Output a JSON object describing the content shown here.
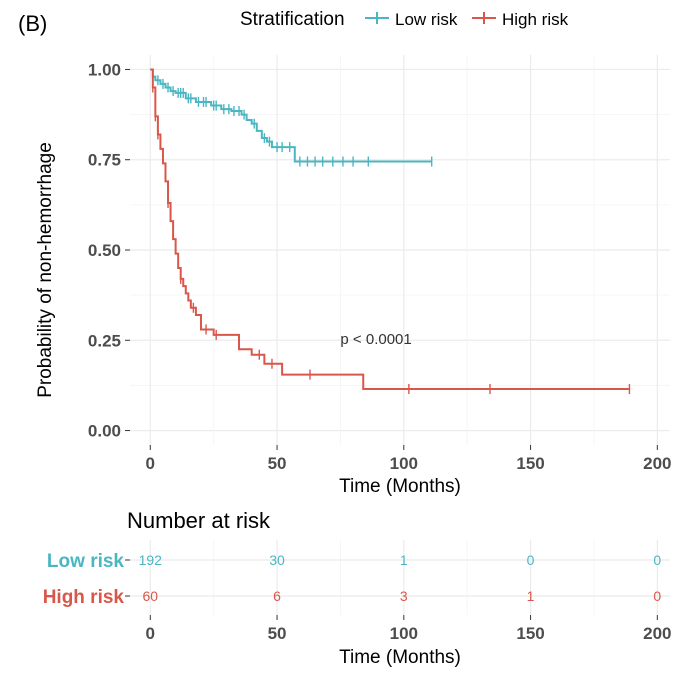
{
  "panel_label": "(B)",
  "colors": {
    "low": "#4bb6c3",
    "high": "#d9574a",
    "grid": "#ebebeb",
    "axis_text": "#4d4d4d"
  },
  "chart_data": {
    "type": "line",
    "subtype": "kaplan-meier",
    "title": "",
    "xlabel": "Time (Months)",
    "ylabel": "Probability of non-hemorrhage",
    "xlim": [
      -8,
      205
    ],
    "ylim": [
      -0.04,
      1.04
    ],
    "x_ticks": [
      0,
      50,
      100,
      150,
      200
    ],
    "y_ticks": [
      0.0,
      0.25,
      0.5,
      0.75,
      1.0
    ],
    "x_tick_labels": [
      "0",
      "50",
      "100",
      "150",
      "200"
    ],
    "y_tick_labels": [
      "0.00",
      "0.25",
      "0.50",
      "0.75",
      "1.00"
    ],
    "grid": true,
    "legend": {
      "title": "Stratification",
      "position": "top",
      "entries": [
        "Low risk",
        "High risk"
      ]
    },
    "annotation": "p < 0.0001",
    "annotation_at": [
      75,
      0.24
    ],
    "series": [
      {
        "name": "Low risk",
        "color_key": "low",
        "steps": [
          [
            0,
            1.0
          ],
          [
            1,
            0.98
          ],
          [
            2,
            0.97
          ],
          [
            4,
            0.96
          ],
          [
            6,
            0.95
          ],
          [
            8,
            0.94
          ],
          [
            10,
            0.935
          ],
          [
            14,
            0.92
          ],
          [
            18,
            0.91
          ],
          [
            24,
            0.9
          ],
          [
            28,
            0.89
          ],
          [
            32,
            0.885
          ],
          [
            36,
            0.875
          ],
          [
            38,
            0.86
          ],
          [
            40,
            0.85
          ],
          [
            42,
            0.83
          ],
          [
            44,
            0.81
          ],
          [
            46,
            0.8
          ],
          [
            48,
            0.785
          ],
          [
            57,
            0.745
          ],
          [
            111,
            0.745
          ]
        ],
        "censors": [
          [
            3,
            0.97
          ],
          [
            5,
            0.96
          ],
          [
            7,
            0.95
          ],
          [
            9,
            0.94
          ],
          [
            11,
            0.935
          ],
          [
            12,
            0.935
          ],
          [
            13,
            0.935
          ],
          [
            15,
            0.92
          ],
          [
            16,
            0.92
          ],
          [
            19,
            0.91
          ],
          [
            21,
            0.91
          ],
          [
            22,
            0.91
          ],
          [
            25,
            0.9
          ],
          [
            26,
            0.9
          ],
          [
            29,
            0.89
          ],
          [
            31,
            0.89
          ],
          [
            33,
            0.885
          ],
          [
            35,
            0.885
          ],
          [
            37,
            0.875
          ],
          [
            41,
            0.85
          ],
          [
            45,
            0.81
          ],
          [
            47,
            0.8
          ],
          [
            50,
            0.785
          ],
          [
            52,
            0.785
          ],
          [
            55,
            0.785
          ],
          [
            59,
            0.745
          ],
          [
            62,
            0.745
          ],
          [
            65,
            0.745
          ],
          [
            68,
            0.745
          ],
          [
            72,
            0.745
          ],
          [
            76,
            0.745
          ],
          [
            80,
            0.745
          ],
          [
            86,
            0.745
          ],
          [
            111,
            0.745
          ]
        ]
      },
      {
        "name": "High risk",
        "color_key": "high",
        "steps": [
          [
            0,
            1.0
          ],
          [
            1,
            0.95
          ],
          [
            2,
            0.87
          ],
          [
            3,
            0.82
          ],
          [
            4,
            0.78
          ],
          [
            5,
            0.74
          ],
          [
            6,
            0.69
          ],
          [
            7,
            0.63
          ],
          [
            8,
            0.58
          ],
          [
            9,
            0.53
          ],
          [
            10,
            0.49
          ],
          [
            11,
            0.45
          ],
          [
            12,
            0.42
          ],
          [
            13,
            0.4
          ],
          [
            14,
            0.38
          ],
          [
            15,
            0.36
          ],
          [
            16,
            0.34
          ],
          [
            18,
            0.32
          ],
          [
            20,
            0.28
          ],
          [
            25,
            0.265
          ],
          [
            30,
            0.265
          ],
          [
            35,
            0.225
          ],
          [
            40,
            0.21
          ],
          [
            45,
            0.185
          ],
          [
            52,
            0.155
          ],
          [
            84,
            0.115
          ],
          [
            189,
            0.115
          ]
        ],
        "censors": [
          [
            1,
            0.95
          ],
          [
            2,
            0.87
          ],
          [
            3,
            0.82
          ],
          [
            7,
            0.63
          ],
          [
            12,
            0.42
          ],
          [
            17,
            0.34
          ],
          [
            22,
            0.28
          ],
          [
            26,
            0.265
          ],
          [
            43,
            0.21
          ],
          [
            48,
            0.185
          ],
          [
            63,
            0.155
          ],
          [
            102,
            0.115
          ],
          [
            134,
            0.115
          ],
          [
            189,
            0.115
          ]
        ]
      }
    ]
  },
  "risk_table": {
    "title": "Number at risk",
    "xlabel": "Time (Months)",
    "rows": [
      {
        "label": "Low risk",
        "color_key": "low",
        "values": [
          "192",
          "30",
          "1",
          "0",
          "0"
        ]
      },
      {
        "label": "High risk",
        "color_key": "high",
        "values": [
          "60",
          "6",
          "3",
          "1",
          "0"
        ]
      }
    ]
  }
}
